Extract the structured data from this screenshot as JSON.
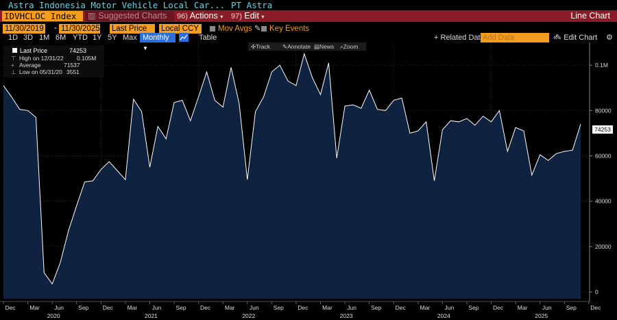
{
  "title": {
    "text": "Astra Indonesia Motor Vehicle Local Car...",
    "company": "PT Astra"
  },
  "command_bar": {
    "ticker": "IDVHCLOC Index",
    "suggested": "Suggested Charts",
    "actions_num": "96)",
    "actions": "Actions",
    "edit_num": "97)",
    "edit": "Edit",
    "chart_type": "Line Chart"
  },
  "date_row": {
    "start": "11/30/2019",
    "end": "11/30/2025",
    "field": "Last Price",
    "currency": "Local CCY",
    "mov_avgs": "Mov Avgs",
    "key_events": "Key Events"
  },
  "range_row": {
    "ranges": [
      "1D",
      "3D",
      "1M",
      "6M",
      "YTD",
      "1Y",
      "5Y",
      "Max"
    ],
    "frequency": "Monthly",
    "table": "Table",
    "related": "+ Related Dat",
    "add_data_placeholder": "Add Data",
    "edit_chart": "Edit Chart"
  },
  "plot_tools": {
    "track": "Track",
    "annotate": "Annotate",
    "news": "News",
    "zoom": "Zoom"
  },
  "legend": {
    "series": "Last Price",
    "last_value": "74253",
    "high_label": "High on 12/31/22",
    "high_value": "0.105M",
    "avg_label": "Average",
    "avg_value": "71537",
    "low_label": "Low on 05/31/20",
    "low_value": "3551"
  },
  "last_price_label": "74253",
  "colors": {
    "accent_orange": "#f39c1e",
    "command_red": "#8a1b27",
    "fill": "#0f2340",
    "line": "#ffffff",
    "title_cyan": "#5fd8ea"
  },
  "chart_data": {
    "type": "area",
    "x": [
      "2019-12",
      "2020-01",
      "2020-02",
      "2020-03",
      "2020-04",
      "2020-05",
      "2020-06",
      "2020-07",
      "2020-08",
      "2020-09",
      "2020-10",
      "2020-11",
      "2020-12",
      "2021-01",
      "2021-02",
      "2021-03",
      "2021-04",
      "2021-05",
      "2021-06",
      "2021-07",
      "2021-08",
      "2021-09",
      "2021-10",
      "2021-11",
      "2021-12",
      "2022-01",
      "2022-02",
      "2022-03",
      "2022-04",
      "2022-05",
      "2022-06",
      "2022-07",
      "2022-08",
      "2022-09",
      "2022-10",
      "2022-11",
      "2022-12",
      "2023-01",
      "2023-02",
      "2023-03",
      "2023-04",
      "2023-05",
      "2023-06",
      "2023-07",
      "2023-08",
      "2023-09",
      "2023-10",
      "2023-11",
      "2023-12",
      "2024-01",
      "2024-02",
      "2024-03",
      "2024-04",
      "2024-05",
      "2024-06",
      "2024-07",
      "2024-08",
      "2024-09",
      "2024-10",
      "2024-11",
      "2024-12",
      "2025-01",
      "2025-02",
      "2025-03",
      "2025-04",
      "2025-05",
      "2025-06",
      "2025-07",
      "2025-08",
      "2025-09",
      "2025-10",
      "2025-11"
    ],
    "series": [
      {
        "name": "Last Price",
        "values": [
          91000,
          86000,
          80500,
          80000,
          77000,
          8500,
          3551,
          13000,
          27000,
          38000,
          48500,
          49000,
          54000,
          57500,
          53500,
          49500,
          85000,
          79500,
          55000,
          73000,
          67500,
          83500,
          84500,
          75500,
          86000,
          97000,
          84500,
          81500,
          99000,
          83000,
          49500,
          79500,
          86000,
          97000,
          100000,
          93000,
          91000,
          105000,
          94500,
          87000,
          101000,
          59000,
          82000,
          82500,
          81000,
          89000,
          80500,
          80000,
          84500,
          85500,
          70000,
          71000,
          75000,
          49000,
          71500,
          75500,
          75000,
          76500,
          73500,
          77500,
          75000,
          80000,
          62000,
          72500,
          71000,
          51500,
          60500,
          58000,
          61000,
          62000,
          62500,
          74000
        ]
      }
    ],
    "ylim": [
      -3000,
      110000
    ],
    "y_ticks": [
      0,
      20000,
      40000,
      60000,
      80000,
      100000
    ],
    "y_tick_labels": [
      "0",
      "20000",
      "40000",
      "60000",
      "80000",
      "0.1M"
    ],
    "x_month_labels": [
      "Dec",
      "Mar",
      "Jun",
      "Sep",
      "Dec",
      "Mar",
      "Jun",
      "Sep",
      "Dec",
      "Mar",
      "Jun",
      "Sep",
      "Dec",
      "Mar",
      "Jun",
      "Sep",
      "Dec",
      "Mar",
      "Jun",
      "Sep",
      "Dec",
      "Mar",
      "Jun",
      "Sep",
      "Dec"
    ],
    "x_year_labels": [
      "2020",
      "2021",
      "2022",
      "2023",
      "2024",
      "2025"
    ],
    "grid": true,
    "legend_position": "top-left"
  }
}
